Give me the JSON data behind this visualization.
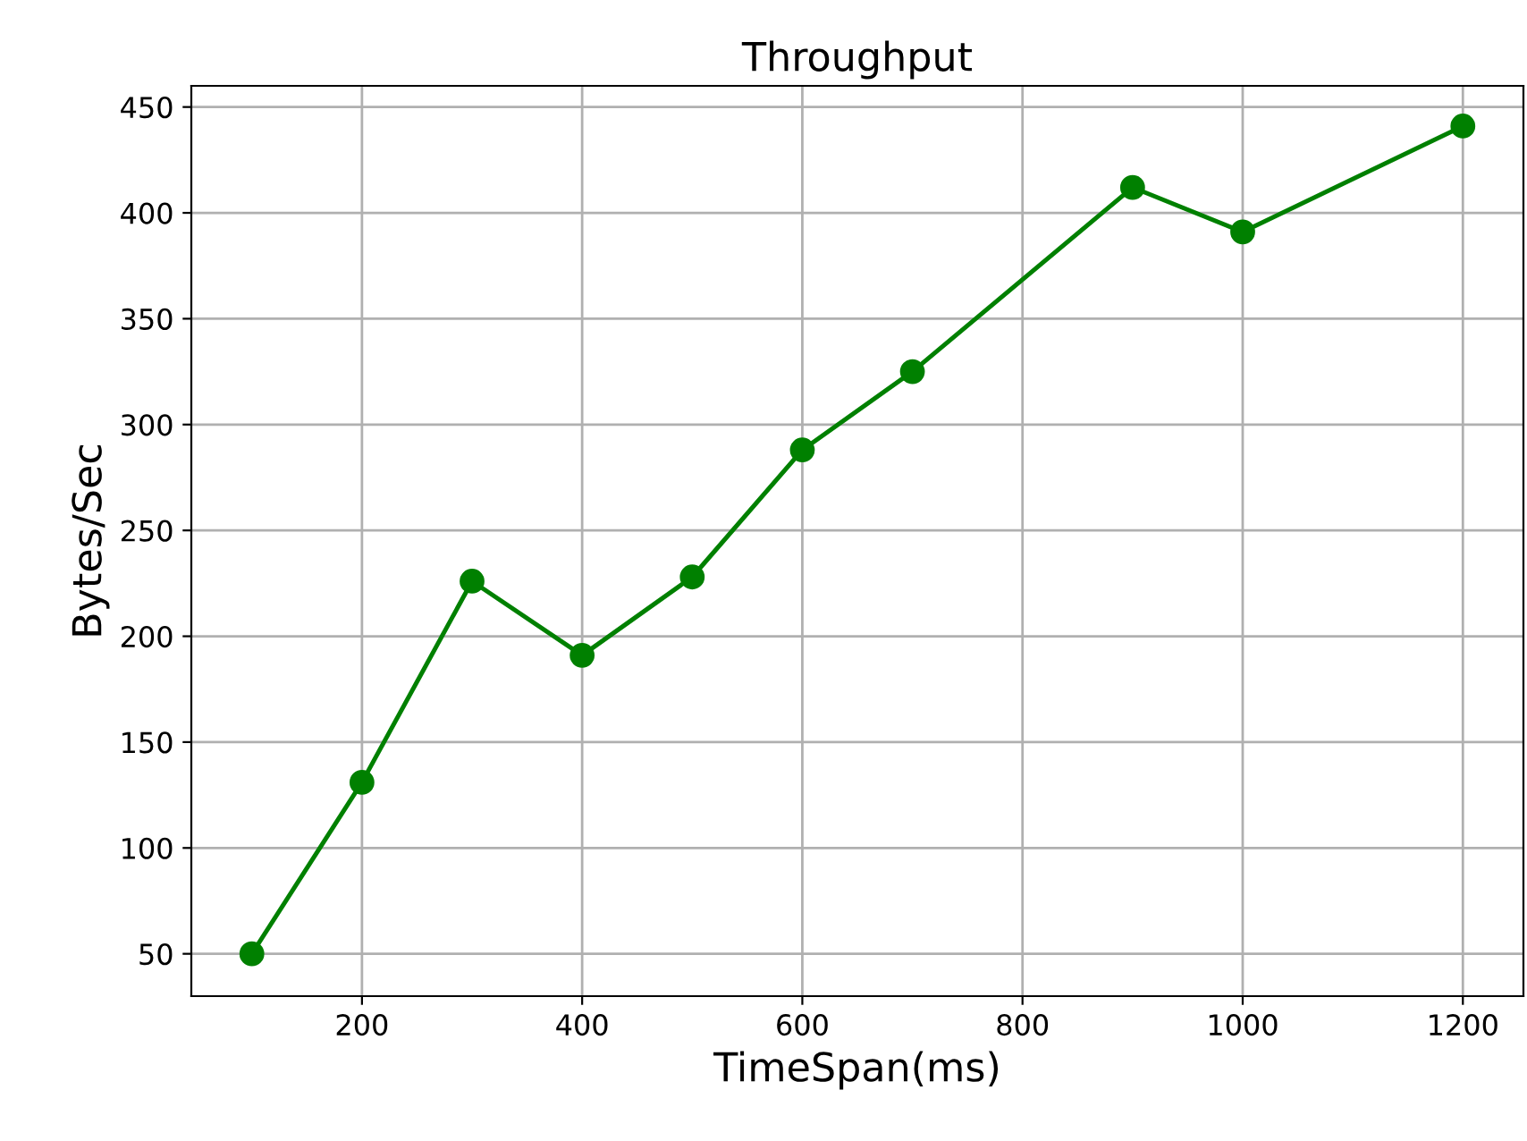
{
  "chart_data": {
    "type": "line",
    "title": "Throughput",
    "xlabel": "TimeSpan(ms)",
    "ylabel": "Bytes/Sec",
    "x": [
      100,
      200,
      300,
      400,
      500,
      600,
      700,
      900,
      1000,
      1200
    ],
    "series": [
      {
        "color": "#008000",
        "values": [
          50,
          131,
          226,
          191,
          228,
          288,
          325,
          412,
          391,
          441
        ]
      }
    ],
    "xlim": [
      45,
      1255
    ],
    "ylim": [
      30,
      460
    ],
    "xticks": [
      200,
      400,
      600,
      800,
      1000,
      1200
    ],
    "yticks": [
      50,
      100,
      150,
      200,
      250,
      300,
      350,
      400,
      450
    ],
    "grid": true,
    "marker": "circle",
    "line_style": "solid"
  }
}
